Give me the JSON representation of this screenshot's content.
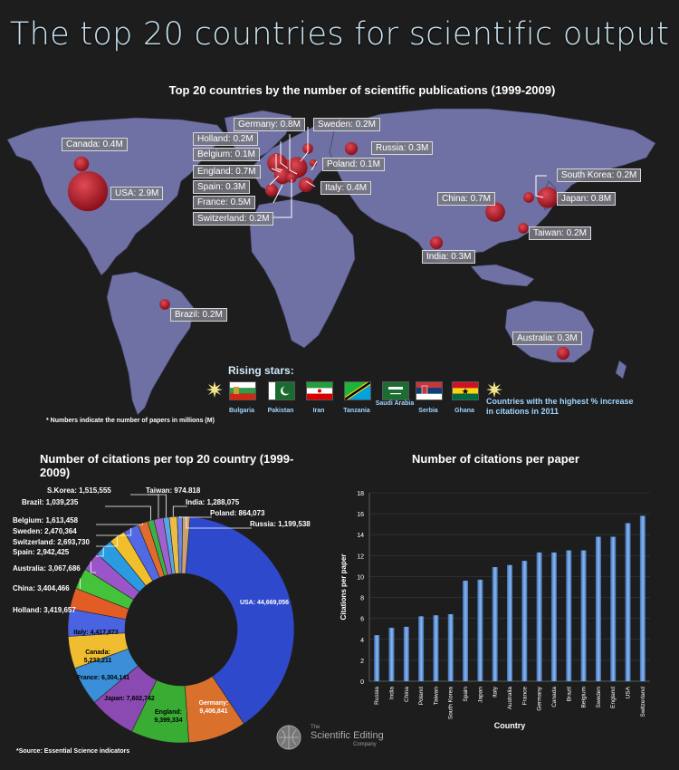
{
  "title": "The top 20 countries for scientific output",
  "map": {
    "title": "Top 20 countries by the number of scientific publications (1999-2009)",
    "footnote": "* Numbers indicate the number of papers in millions (M)",
    "countries": [
      {
        "label": "Canada: 0.4M",
        "value": 0.4
      },
      {
        "label": "USA: 2.9M",
        "value": 2.9
      },
      {
        "label": "Brazil: 0.2M",
        "value": 0.2
      },
      {
        "label": "Germany: 0.8M",
        "value": 0.8
      },
      {
        "label": "Holland: 0.2M",
        "value": 0.2
      },
      {
        "label": "Belgium: 0.1M",
        "value": 0.1
      },
      {
        "label": "England: 0.7M",
        "value": 0.7
      },
      {
        "label": "Spain: 0.3M",
        "value": 0.3
      },
      {
        "label": "France: 0.5M",
        "value": 0.5
      },
      {
        "label": "Switzerland: 0.2M",
        "value": 0.2
      },
      {
        "label": "Sweden: 0.2M",
        "value": 0.2
      },
      {
        "label": "Russia: 0.3M",
        "value": 0.3
      },
      {
        "label": "Poland: 0.1M",
        "value": 0.1
      },
      {
        "label": "Italy: 0.4M",
        "value": 0.4
      },
      {
        "label": "South Korea: 0.2M",
        "value": 0.2
      },
      {
        "label": "Japan: 0.8M",
        "value": 0.8
      },
      {
        "label": "China: 0.7M",
        "value": 0.7
      },
      {
        "label": "Taiwan: 0.2M",
        "value": 0.2
      },
      {
        "label": "India: 0.3M",
        "value": 0.3
      },
      {
        "label": "Australia: 0.3M",
        "value": 0.3
      }
    ]
  },
  "rising": {
    "title": "Rising stars:",
    "flags": [
      "Bulgaria",
      "Pakistan",
      "Iran",
      "Tanzania",
      "Saudi Arabia",
      "Serbia",
      "Ghana"
    ],
    "description": "Countries with the highest % increase in citations in 2011"
  },
  "chart_data": [
    {
      "type": "pie",
      "title": "Number of citations per top 20 country (1999-2009)",
      "slices": [
        {
          "name": "USA",
          "value": 44669056,
          "label": "USA: 44,669,056",
          "color": "#2f49cc"
        },
        {
          "name": "Germany",
          "value": 9406841,
          "label": "Germany: 9,406,841",
          "color": "#d9712c"
        },
        {
          "name": "England",
          "value": 9399334,
          "label": "England: 9,399,334",
          "color": "#39ad33"
        },
        {
          "name": "Japan",
          "value": 7602742,
          "label": "Japan: 7,602,742",
          "color": "#8b49b2"
        },
        {
          "name": "France",
          "value": 6304141,
          "label": "France: 6,304,141",
          "color": "#3a8fd8"
        },
        {
          "name": "Canada",
          "value": 5233211,
          "label": "Canada: 5,233,211",
          "color": "#efbd2f"
        },
        {
          "name": "Italy",
          "value": 4417873,
          "label": "Italy: 4,417,873",
          "color": "#4a63e0"
        },
        {
          "name": "Holland",
          "value": 3419657,
          "label": "Holland: 3,419,657",
          "color": "#e25d25"
        },
        {
          "name": "China",
          "value": 3404466,
          "label": "China: 3,404,466",
          "color": "#44c23a"
        },
        {
          "name": "Australia",
          "value": 3067686,
          "label": "Australia: 3,067,686",
          "color": "#9a55c9"
        },
        {
          "name": "Spain",
          "value": 2942425,
          "label": "Spain: 2,942,425",
          "color": "#2a9be0"
        },
        {
          "name": "Switzerland",
          "value": 2693730,
          "label": "Switzerland: 2,693,730",
          "color": "#f0c02c"
        },
        {
          "name": "Sweden",
          "value": 2470364,
          "label": "Sweden: 2,470,364",
          "color": "#5169e3"
        },
        {
          "name": "Belgium",
          "value": 1613458,
          "label": "Belgium: 1,613,458",
          "color": "#e06b2d"
        },
        {
          "name": "Brazil",
          "value": 1039235,
          "label": "Brazil: 1,039,235",
          "color": "#3fae45"
        },
        {
          "name": "S.Korea",
          "value": 1515555,
          "label": "S.Korea: 1,515,555",
          "color": "#a060cf"
        },
        {
          "name": "Taiwan",
          "value": 974818,
          "label": "Taiwan: 974.818",
          "color": "#56a7e8"
        },
        {
          "name": "India",
          "value": 1288075,
          "label": "India: 1,288,075",
          "color": "#ebbd45"
        },
        {
          "name": "Poland",
          "value": 864073,
          "label": "Poland: 864,073",
          "color": "#6b86e8"
        },
        {
          "name": "Russia",
          "value": 1199538,
          "label": "Russia: 1,199,538",
          "color": "#c9a070"
        }
      ]
    },
    {
      "type": "bar",
      "title": "Number of citations per paper",
      "xlabel": "Country",
      "ylabel": "Citations per paper",
      "ylim": [
        0,
        18
      ],
      "yticks": [
        0,
        2,
        4,
        6,
        8,
        10,
        12,
        14,
        16,
        18
      ],
      "categories": [
        "Russia",
        "India",
        "China",
        "Poland",
        "Taiwan",
        "South Korea",
        "Spain",
        "Japan",
        "Italy",
        "Australia",
        "France",
        "Germany",
        "Canada",
        "Brazil",
        "Belgium",
        "Sweden",
        "England",
        "USA",
        "Switzerland"
      ],
      "values": [
        4.4,
        5.1,
        5.2,
        6.2,
        6.3,
        6.4,
        9.6,
        9.7,
        10.9,
        11.1,
        11.5,
        12.3,
        12.3,
        12.5,
        12.5,
        13.8,
        13.8,
        15.1,
        15.8
      ]
    }
  ],
  "source": "*Source: Essential Science indicators",
  "logo": {
    "small": "The",
    "name": "Scientific Editing",
    "sub": "Company"
  }
}
